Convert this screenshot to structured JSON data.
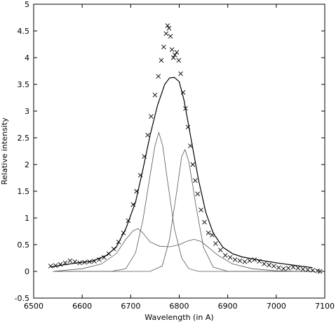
{
  "chart_data": {
    "type": "scatter",
    "title": "",
    "xlabel": "Wavelength (in A)",
    "ylabel": "Relative intensity",
    "xlim": [
      6500,
      7100
    ],
    "ylim": [
      -0.5,
      5
    ],
    "xticks": [
      "6500",
      "6600",
      "6700",
      "6800",
      "6900",
      "7000",
      "7100"
    ],
    "yticks": [
      "-0.5",
      "0",
      "0.5",
      "1",
      "1.5",
      "2",
      "2.5",
      "3",
      "3.5",
      "4",
      "4.5",
      "5"
    ],
    "grid": false,
    "legend": "none",
    "colors": {
      "line": "#000000",
      "thin_line": "#555555",
      "marker": "#000000"
    },
    "observed": {
      "marker": "x",
      "x": [
        6535,
        6545,
        6555,
        6565,
        6575,
        6585,
        6595,
        6605,
        6615,
        6625,
        6635,
        6645,
        6655,
        6665,
        6675,
        6685,
        6695,
        6705,
        6712,
        6720,
        6728,
        6735,
        6742,
        6750,
        6757,
        6763,
        6768,
        6773,
        6776,
        6779,
        6782,
        6785,
        6788,
        6791,
        6795,
        6799,
        6803,
        6808,
        6813,
        6818,
        6823,
        6828,
        6833,
        6838,
        6845,
        6852,
        6860,
        6868,
        6875,
        6885,
        6895,
        6905,
        6915,
        6925,
        6935,
        6945,
        6955,
        6965,
        6975,
        6985,
        6995,
        7005,
        7015,
        7025,
        7035,
        7045,
        7055,
        7065,
        7075,
        7085,
        7090
      ],
      "y": [
        0.1,
        0.11,
        0.13,
        0.16,
        0.2,
        0.18,
        0.16,
        0.17,
        0.18,
        0.19,
        0.22,
        0.26,
        0.33,
        0.42,
        0.55,
        0.72,
        0.95,
        1.25,
        1.5,
        1.8,
        2.15,
        2.55,
        2.9,
        3.3,
        3.65,
        3.95,
        4.2,
        4.45,
        4.6,
        4.55,
        4.4,
        4.15,
        4.0,
        4.05,
        4.1,
        3.95,
        3.7,
        3.35,
        3.05,
        2.7,
        2.35,
        2.0,
        1.7,
        1.45,
        1.15,
        0.92,
        0.72,
        0.68,
        0.52,
        0.4,
        0.3,
        0.26,
        0.22,
        0.2,
        0.18,
        0.2,
        0.22,
        0.19,
        0.14,
        0.12,
        0.1,
        0.07,
        0.05,
        0.06,
        0.08,
        0.06,
        0.04,
        0.03,
        0.02,
        0.01,
        0.0
      ]
    },
    "series": [
      {
        "style": "solid",
        "x": [
          6535,
          6560,
          6590,
          6620,
          6650,
          6670,
          6690,
          6710,
          6725,
          6740,
          6755,
          6770,
          6780,
          6790,
          6800,
          6810,
          6825,
          6840,
          6855,
          6870,
          6890,
          6910,
          6930,
          6960,
          7000,
          7040,
          7075
        ],
        "y": [
          0.08,
          0.12,
          0.16,
          0.19,
          0.3,
          0.45,
          0.8,
          1.3,
          1.9,
          2.55,
          3.1,
          3.5,
          3.62,
          3.63,
          3.55,
          3.2,
          2.45,
          1.7,
          1.1,
          0.72,
          0.45,
          0.33,
          0.27,
          0.22,
          0.16,
          0.11,
          0.07
        ]
      },
      {
        "style": "thin",
        "x": [
          6540,
          6600,
          6640,
          6670,
          6690,
          6705,
          6715,
          6725,
          6740,
          6760,
          6780,
          6800,
          6815,
          6830,
          6845,
          6860,
          6880,
          6910,
          6950,
          7000,
          7050,
          7080
        ],
        "y": [
          0.0,
          0.05,
          0.14,
          0.33,
          0.6,
          0.76,
          0.8,
          0.72,
          0.55,
          0.47,
          0.46,
          0.5,
          0.56,
          0.6,
          0.56,
          0.45,
          0.3,
          0.14,
          0.05,
          0.01,
          0.0,
          0.0
        ]
      },
      {
        "style": "thin",
        "x": [
          6540,
          6660,
          6690,
          6710,
          6725,
          6740,
          6750,
          6758,
          6766,
          6775,
          6790,
          6805,
          6820,
          6840,
          6870,
          6900,
          7080
        ],
        "y": [
          0.0,
          0.0,
          0.05,
          0.35,
          0.95,
          1.8,
          2.35,
          2.6,
          2.35,
          1.75,
          0.8,
          0.25,
          0.05,
          0.0,
          0.0,
          0.0,
          0.0
        ]
      },
      {
        "style": "thin",
        "x": [
          6540,
          6740,
          6765,
          6780,
          6795,
          6805,
          6812,
          6820,
          6835,
          6850,
          6870,
          6900,
          7080
        ],
        "y": [
          0.0,
          0.0,
          0.1,
          0.6,
          1.5,
          2.15,
          2.28,
          2.05,
          1.2,
          0.45,
          0.08,
          0.0,
          0.0
        ]
      }
    ]
  }
}
